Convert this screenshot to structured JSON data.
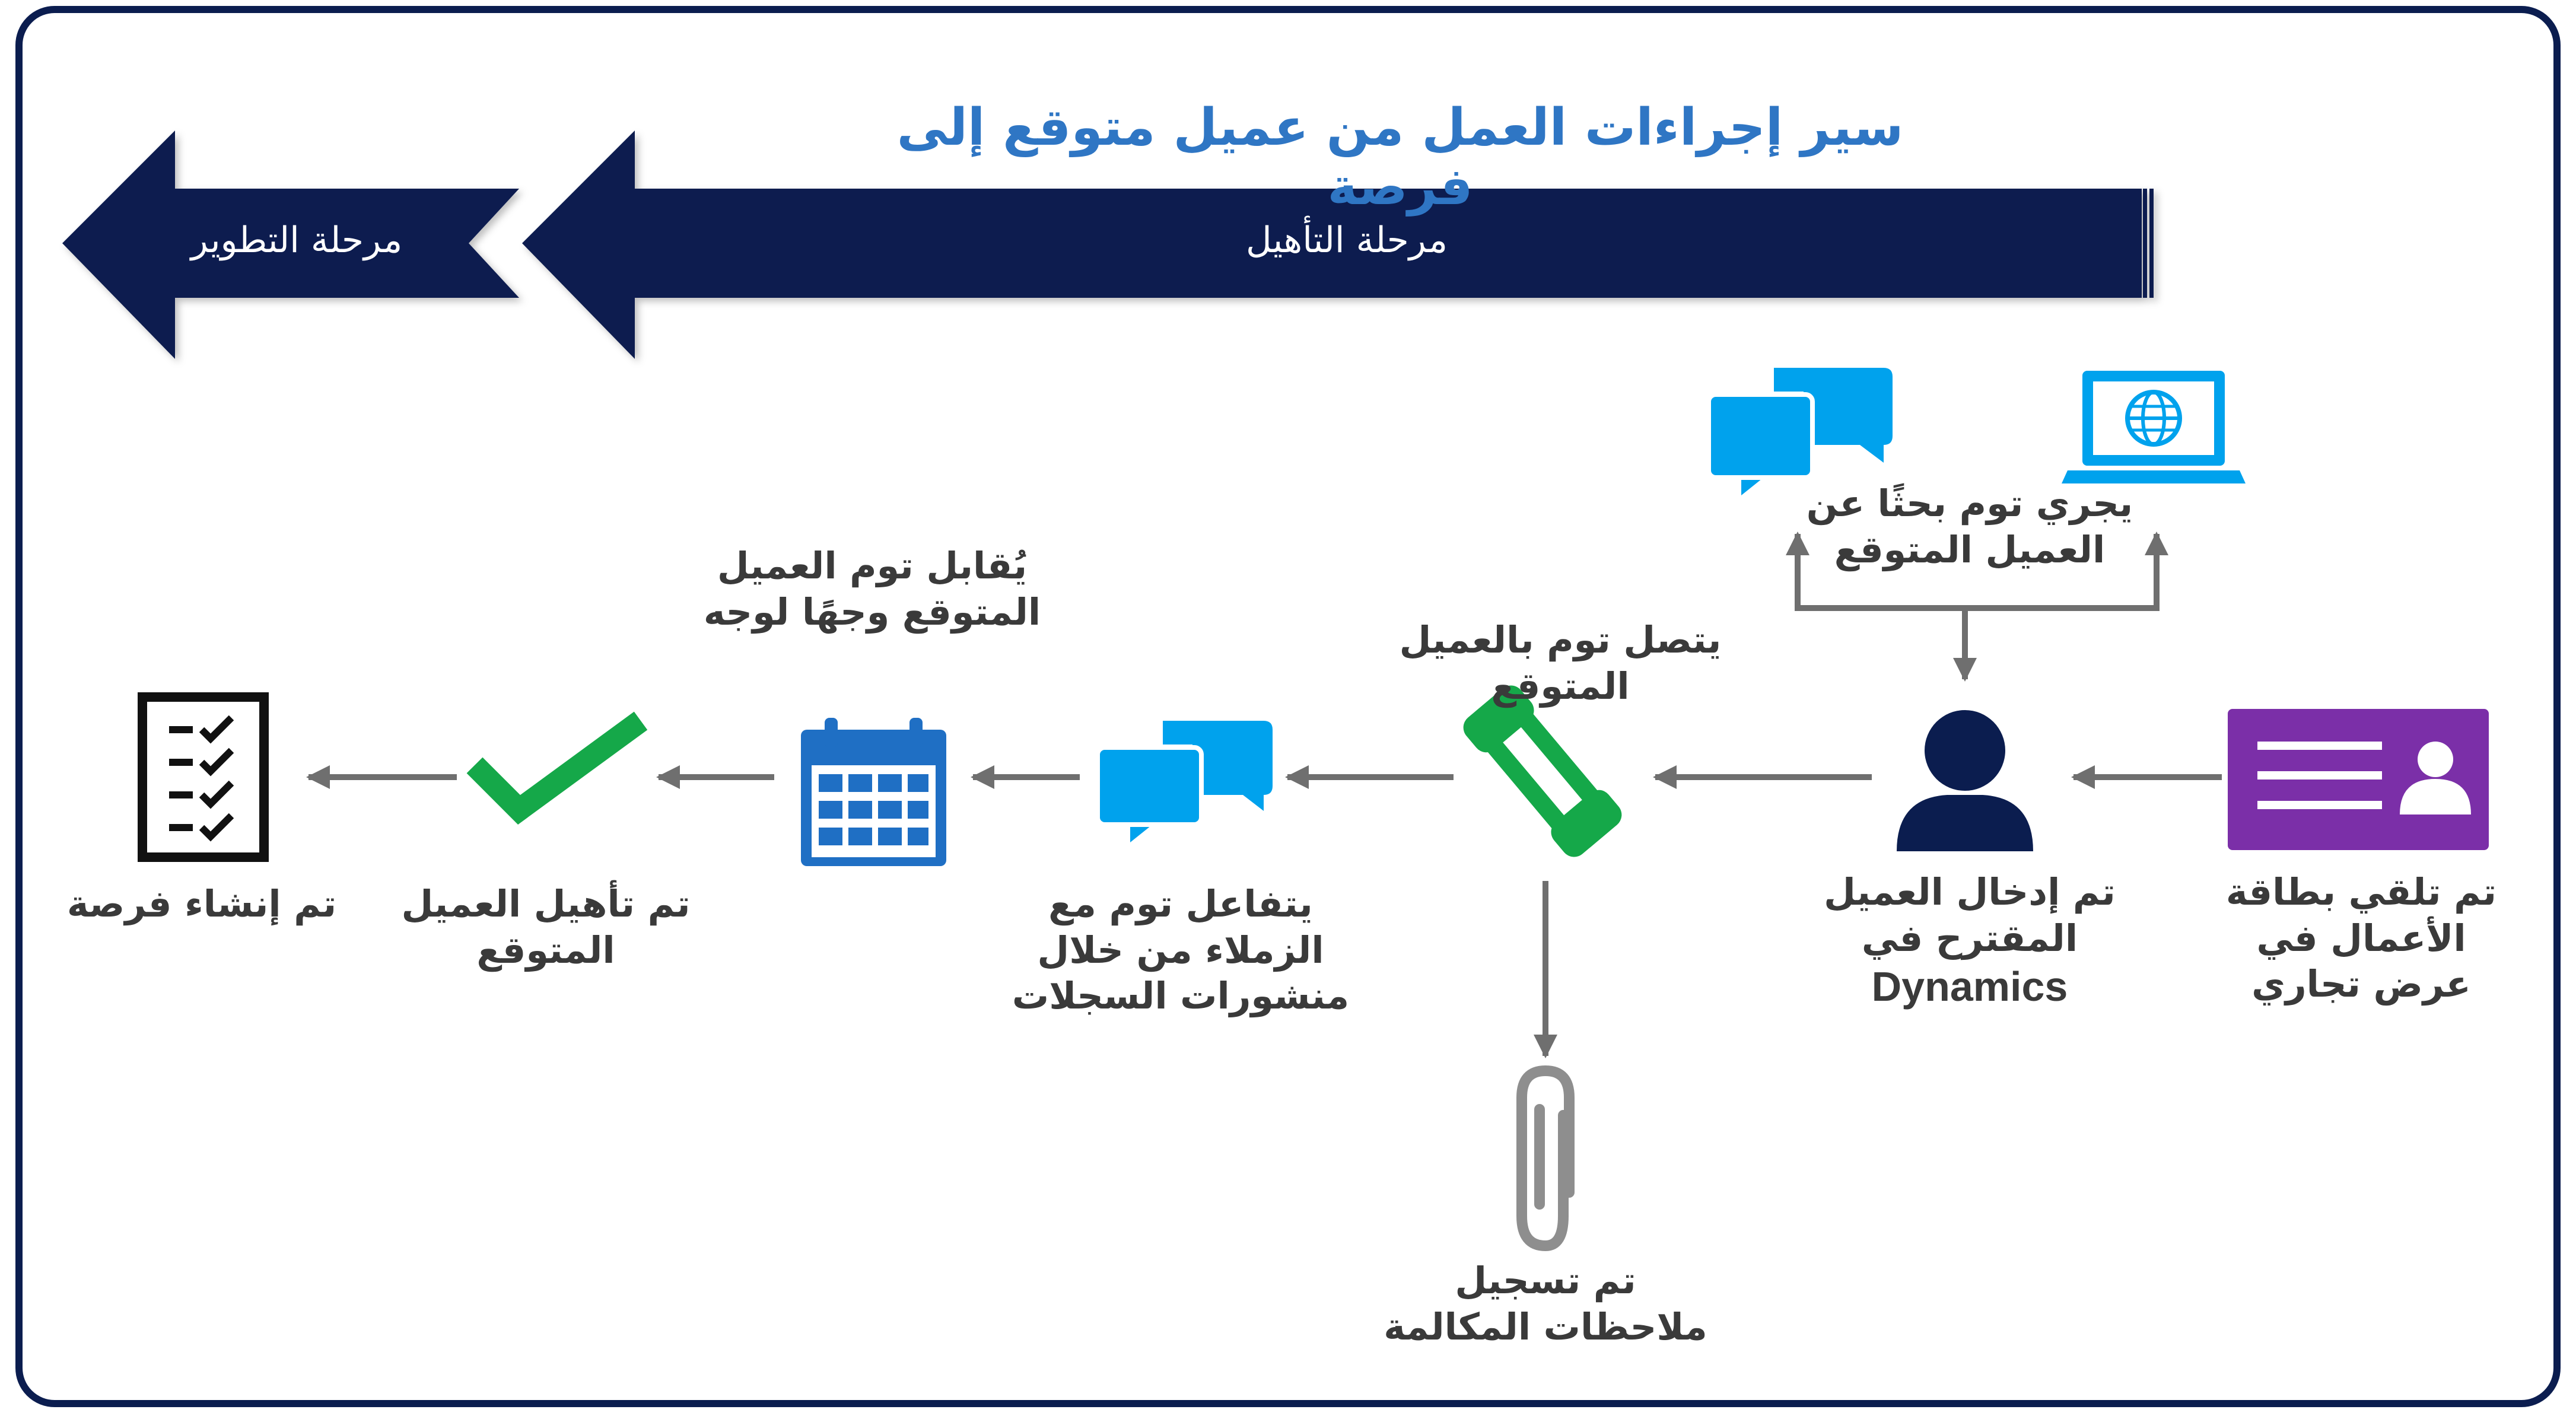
{
  "title": "سير إجراءات العمل من عميل متوقع إلى فرصة",
  "stages": {
    "develop": "مرحلة التطوير",
    "qualify": "مرحلة التأهيل"
  },
  "steps": {
    "business_card": [
      "تم تلقي بطاقة",
      "الأعمال في",
      "عرض تجاري"
    ],
    "lead_entered": [
      "تم إدخال العميل",
      "المقترح في"
    ],
    "lead_entered_product": "Dynamics",
    "research": [
      "يجري توم بحثًا عن",
      "العميل المتوقع"
    ],
    "call": "يتصل توم بالعميل المتوقع",
    "call_notes": [
      "تم تسجيل",
      "ملاحظات المكالمة"
    ],
    "colleagues": [
      "يتفاعل توم مع",
      "الزملاء من خلال",
      "منشورات السجلات"
    ],
    "meeting": [
      "يُقابل توم العميل",
      "المتوقع وجهًا لوجه"
    ],
    "qualified": [
      "تم تأهيل العميل",
      "المتوقع"
    ],
    "opportunity": "تم إنشاء فرصة"
  },
  "colors": {
    "navy": "#0b1d4f",
    "title_blue": "#2f76c4",
    "icon_blue": "#00a2ed",
    "purple": "#7b2fa8",
    "green": "#15a849",
    "gray": "#6f6f6f",
    "clip_gray": "#8e8e8e"
  },
  "icons": [
    "business-card-icon",
    "person-icon",
    "laptop-globe-icon",
    "chat-bubbles-icon",
    "phone-icon",
    "paperclip-icon",
    "calendar-icon",
    "checkmark-icon",
    "checklist-icon"
  ]
}
